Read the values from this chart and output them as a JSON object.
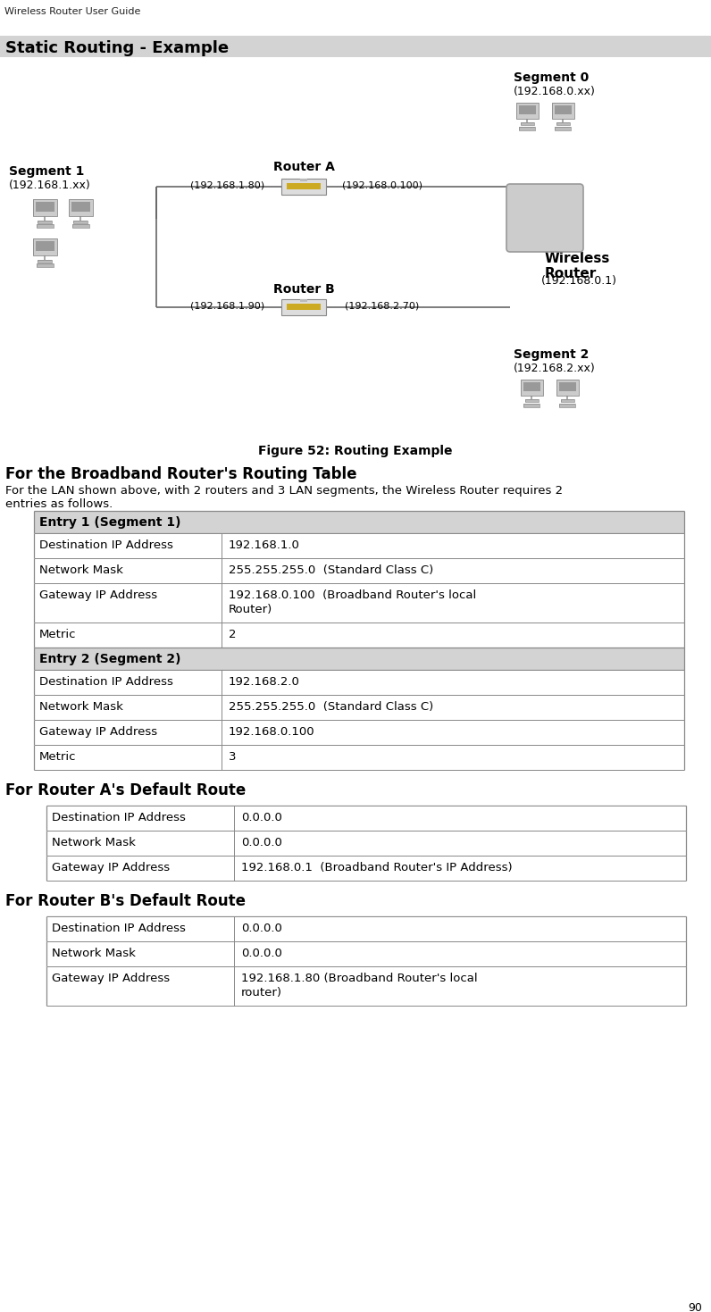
{
  "page_header": "Wireless Router User Guide",
  "section_title": "Static Routing - Example",
  "figure_caption": "Figure 52: Routing Example",
  "heading1": "For the Broadband Router's Routing Table",
  "paragraph1": "For the LAN shown above, with 2 routers and 3 LAN segments, the Wireless Router requires 2\nentries as follows.",
  "heading2": "For Router A's Default Route",
  "heading3": "For Router B's Default Route",
  "page_number": "90",
  "bg_color": "#ffffff",
  "table_header_bg": "#d3d3d3",
  "table_border_color": "#888888",
  "section_title_bg": "#d3d3d3",
  "tables": [
    {
      "header": "Entry 1 (Segment 1)",
      "rows": [
        [
          "Destination IP Address",
          "192.168.1.0"
        ],
        [
          "Network Mask",
          "255.255.255.0  (Standard Class C)"
        ],
        [
          "Gateway IP Address",
          "192.168.0.100  (Broadband Router's local\nRouter)"
        ],
        [
          "Metric",
          "2"
        ]
      ]
    },
    {
      "header": "Entry 2 (Segment 2)",
      "rows": [
        [
          "Destination IP Address",
          "192.168.2.0"
        ],
        [
          "Network Mask",
          "255.255.255.0  (Standard Class C)"
        ],
        [
          "Gateway IP Address",
          "192.168.0.100"
        ],
        [
          "Metric",
          "3"
        ]
      ]
    }
  ],
  "router_a_table": {
    "rows": [
      [
        "Destination IP Address",
        "0.0.0.0"
      ],
      [
        "Network Mask",
        "0.0.0.0"
      ],
      [
        "Gateway IP Address",
        "192.168.0.1  (Broadband Router's IP Address)"
      ]
    ]
  },
  "router_b_table": {
    "rows": [
      [
        "Destination IP Address",
        "0.0.0.0"
      ],
      [
        "Network Mask",
        "0.0.0.0"
      ],
      [
        "Gateway IP Address",
        "192.168.1.80 (Broadband Router's local\nrouter)"
      ]
    ]
  },
  "diagram": {
    "segment0_label": "Segment 0",
    "segment0_sub": "(192.168.0.xx)",
    "segment1_label": "Segment 1",
    "segment1_sub": "(192.168.1.xx)",
    "segment2_label": "Segment 2",
    "segment2_sub": "(192.168.2.xx)",
    "router_a_label": "Router A",
    "router_a_left_ip": "(192.168.1.80)",
    "router_a_right_ip": "(192.168.0.100)",
    "router_b_label": "Router B",
    "router_b_left_ip": "(192.168.1.90)",
    "router_b_right_ip": "(192.168.2.70)",
    "wireless_router_label": "Wireless\nRouter",
    "wireless_router_ip": "(192.168.0.1)"
  }
}
